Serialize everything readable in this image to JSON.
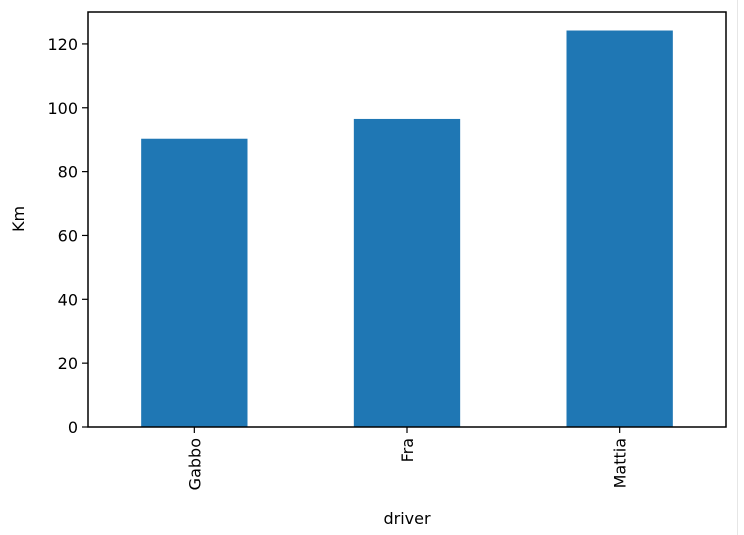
{
  "chart_data": {
    "type": "bar",
    "categories": [
      "Gabbo",
      "Fra",
      "Mattia"
    ],
    "values": [
      90.3,
      96.5,
      124.2
    ],
    "xlabel": "driver",
    "ylabel": "Km",
    "ylim": [
      0,
      130
    ],
    "yticks": [
      0,
      20,
      40,
      60,
      80,
      100,
      120
    ],
    "bar_color": "#1f77b4",
    "grid": false,
    "legend": "none"
  }
}
